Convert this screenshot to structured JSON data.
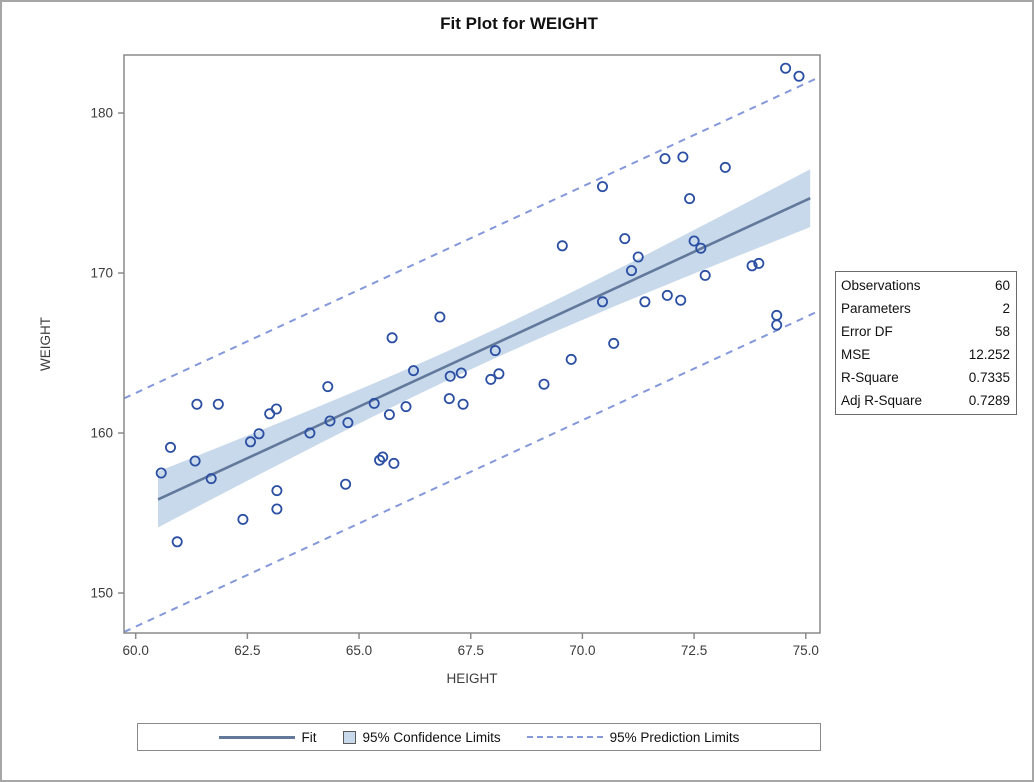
{
  "title": "Fit Plot for WEIGHT",
  "stats": {
    "rows": [
      {
        "label": "Observations",
        "value": "60"
      },
      {
        "label": "Parameters",
        "value": "2"
      },
      {
        "label": "Error DF",
        "value": "58"
      },
      {
        "label": "MSE",
        "value": "12.252"
      },
      {
        "label": "R-Square",
        "value": "0.7335"
      },
      {
        "label": "Adj R-Square",
        "value": "0.7289"
      }
    ]
  },
  "legend": {
    "fit_label": "Fit",
    "confidence_label": "95% Confidence Limits",
    "prediction_label": "95% Prediction Limits"
  },
  "colors": {
    "marker": "#2b4fa2",
    "fit_line": "#62799c",
    "confidence_band": "#c9d9ec",
    "prediction_line": "#8498da",
    "frame": "#8a8a8a",
    "tick_text": "#3c3c3c"
  },
  "chart_data": {
    "type": "scatter",
    "title": "Fit Plot for WEIGHT",
    "xlabel": "HEIGHT",
    "ylabel": "WEIGHT",
    "xlim": [
      59.74,
      75.27
    ],
    "ylim": [
      147.4,
      183.6
    ],
    "xticks": [
      60.0,
      62.5,
      65.0,
      67.5,
      70.0,
      72.5,
      75.0
    ],
    "yticks": [
      150,
      160,
      170,
      180
    ],
    "grid": false,
    "legend_position": "bottom",
    "points": [
      [
        60.57,
        157.5
      ],
      [
        60.78,
        159.1
      ],
      [
        60.93,
        153.2
      ],
      [
        61.37,
        161.8
      ],
      [
        61.33,
        158.25
      ],
      [
        61.69,
        157.15
      ],
      [
        61.85,
        161.8
      ],
      [
        62.4,
        154.6
      ],
      [
        62.57,
        159.45
      ],
      [
        62.76,
        159.95
      ],
      [
        63.0,
        161.2
      ],
      [
        63.15,
        161.5
      ],
      [
        63.16,
        156.4
      ],
      [
        63.16,
        155.25
      ],
      [
        63.9,
        160.0
      ],
      [
        64.3,
        162.9
      ],
      [
        64.35,
        160.75
      ],
      [
        64.7,
        156.8
      ],
      [
        64.75,
        160.65
      ],
      [
        65.34,
        161.85
      ],
      [
        65.46,
        158.3
      ],
      [
        65.53,
        158.5
      ],
      [
        65.68,
        161.15
      ],
      [
        65.78,
        158.1
      ],
      [
        65.74,
        165.95
      ],
      [
        66.05,
        161.65
      ],
      [
        66.22,
        163.9
      ],
      [
        66.81,
        167.25
      ],
      [
        67.02,
        162.15
      ],
      [
        67.04,
        163.55
      ],
      [
        67.29,
        163.75
      ],
      [
        67.33,
        161.8
      ],
      [
        67.95,
        163.35
      ],
      [
        68.13,
        163.7
      ],
      [
        68.05,
        165.15
      ],
      [
        69.14,
        163.05
      ],
      [
        69.55,
        171.7
      ],
      [
        69.75,
        164.6
      ],
      [
        70.45,
        175.4
      ],
      [
        70.45,
        168.2
      ],
      [
        70.7,
        165.6
      ],
      [
        70.95,
        172.15
      ],
      [
        71.1,
        170.15
      ],
      [
        71.25,
        171.0
      ],
      [
        71.4,
        168.2
      ],
      [
        71.85,
        177.15
      ],
      [
        71.9,
        168.6
      ],
      [
        72.2,
        168.3
      ],
      [
        72.25,
        177.25
      ],
      [
        72.4,
        174.65
      ],
      [
        72.5,
        172.0
      ],
      [
        72.65,
        171.55
      ],
      [
        72.75,
        169.85
      ],
      [
        73.2,
        176.6
      ],
      [
        73.8,
        170.45
      ],
      [
        73.95,
        170.6
      ],
      [
        74.35,
        167.35
      ],
      [
        74.35,
        166.75
      ],
      [
        74.55,
        182.8
      ],
      [
        74.85,
        182.3
      ]
    ],
    "fit": {
      "intercept": 77.8,
      "slope": 1.29,
      "x_start": 60.5,
      "x_end": 75.1
    },
    "confidence_band": {
      "level": "95%",
      "scale": 7.0,
      "inv_n": 0.01667,
      "x_mean": 67.64,
      "sxx": 1110
    },
    "prediction_limits": {
      "level": "95%",
      "offset": 7.3,
      "x_start": 59.74,
      "x_end": 75.27
    }
  }
}
